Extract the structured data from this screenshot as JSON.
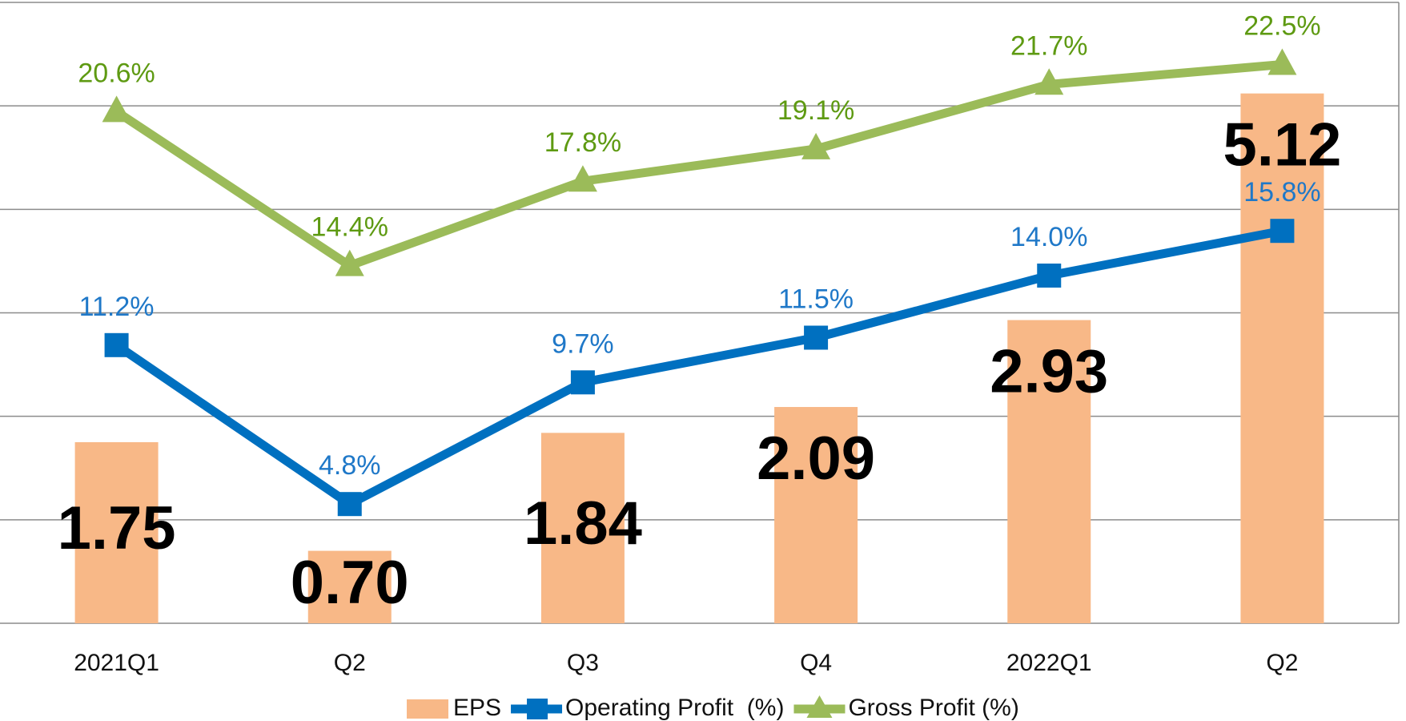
{
  "chart_data": {
    "type": "bar-line",
    "categories": [
      "2021Q1",
      "Q2",
      "Q3",
      "Q4",
      "2022Q1",
      "Q2"
    ],
    "series": [
      {
        "name": "EPS",
        "type": "bar",
        "color": "#f8b887",
        "values": [
          1.75,
          0.7,
          1.84,
          2.09,
          2.93,
          5.12
        ],
        "value_labels": [
          "1.75",
          "0.70",
          "1.84",
          "2.09",
          "2.93",
          "5.12"
        ],
        "label_color": "#000000"
      },
      {
        "name": "Operating Profit  (%)",
        "type": "line",
        "marker": "square",
        "axis": "y2",
        "color": "#0070c0",
        "values": [
          11.2,
          4.8,
          9.7,
          11.5,
          14.0,
          15.8
        ],
        "value_labels": [
          "11.2%",
          "4.8%",
          "9.7%",
          "11.5%",
          "14.0%",
          "15.8%"
        ],
        "label_color": "#1f78c8"
      },
      {
        "name": "Gross Profit (%)",
        "type": "line",
        "marker": "triangle",
        "axis": "y2",
        "color": "#9bbb59",
        "values": [
          20.6,
          14.4,
          17.8,
          19.1,
          21.7,
          22.5
        ],
        "value_labels": [
          "20.6%",
          "14.4%",
          "17.8%",
          "19.1%",
          "21.7%",
          "22.5%"
        ],
        "label_color": "#5e9a12"
      }
    ],
    "ylim": [
      0,
      6
    ],
    "yticks": [
      0,
      1,
      2,
      3,
      4,
      5,
      6
    ],
    "y2lim": [
      0,
      25
    ],
    "grid": true
  }
}
